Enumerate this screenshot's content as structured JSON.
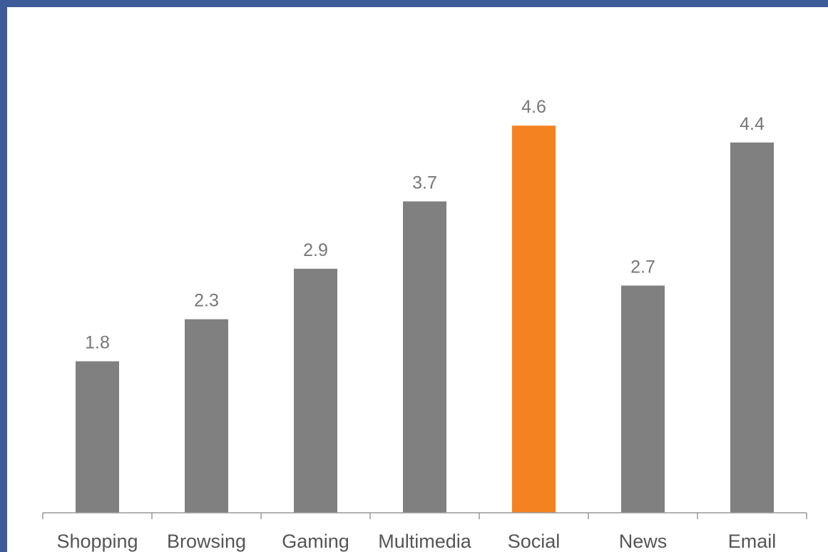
{
  "chart_data": {
    "type": "bar",
    "title": "",
    "xlabel": "",
    "ylabel": "",
    "categories": [
      "Shopping",
      "Browsing",
      "Gaming",
      "Multimedia",
      "Social",
      "News",
      "Email"
    ],
    "values": [
      1.8,
      2.3,
      2.9,
      3.7,
      4.6,
      2.7,
      4.4
    ],
    "value_labels": [
      "1.8",
      "2.3",
      "2.9",
      "3.7",
      "4.6",
      "2.7",
      "4.4"
    ],
    "ylim": [
      0,
      5
    ],
    "grid": false,
    "legend": "none",
    "colors": {
      "default_bar": "#808080",
      "highlight_bar": "#f58220",
      "axis": "#999999",
      "frame": "#3d5a99"
    },
    "highlight_index": 4
  }
}
